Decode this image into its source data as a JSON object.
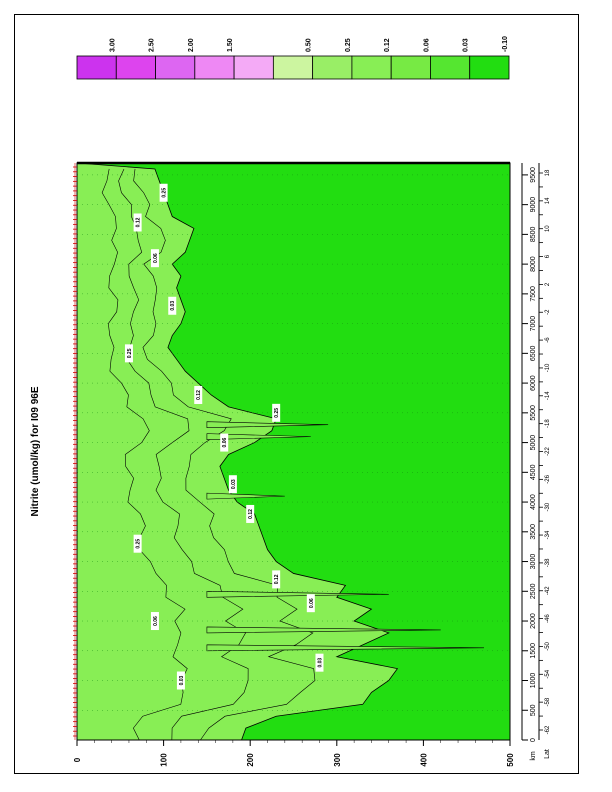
{
  "chart_data": {
    "type": "heatmap",
    "title": "Nitrite (umol/kg) for I09 96E",
    "orientation": "rotated 90 degrees clockwise",
    "x_axis": {
      "label": "km",
      "range": [
        0,
        9700
      ],
      "ticks": [
        "0",
        "500",
        "1000",
        "1500",
        "2000",
        "2500",
        "3000",
        "3500",
        "4000",
        "4500",
        "5000",
        "5500",
        "6000",
        "6500",
        "7000",
        "7500",
        "8000",
        "8500",
        "9000",
        "9500"
      ]
    },
    "lat_axis": {
      "label": "Lat",
      "ticks": [
        "-62",
        "-60",
        "-58",
        "-56",
        "-54",
        "-52",
        "-50",
        "-48",
        "-46",
        "-44",
        "-42",
        "-40",
        "-38",
        "-36",
        "-34",
        "-32",
        "-30",
        "-28",
        "-26",
        "-24",
        "-22",
        "-20",
        "-18",
        "-16",
        "-14",
        "-12",
        "-10",
        "-8",
        "-6",
        "-4",
        "-2",
        "0",
        "2",
        "4",
        "6",
        "8",
        "10",
        "12",
        "14",
        "16",
        "18"
      ]
    },
    "y_axis": {
      "label": "",
      "range": [
        0,
        500
      ],
      "ticks": [
        "0",
        "100",
        "200",
        "300",
        "400",
        "500"
      ]
    },
    "legend": {
      "placement": "top",
      "levels": [
        {
          "label": "3.00",
          "color": "#cc33ee"
        },
        {
          "label": "2.50",
          "color": "#dd44ee"
        },
        {
          "label": "2.00",
          "color": "#dd66f2"
        },
        {
          "label": "1.50",
          "color": "#ee88f4"
        },
        {
          "label": "",
          "color": "#f4aaf6"
        },
        {
          "label": "0.50",
          "color": "#ccf5a0"
        },
        {
          "label": "0.25",
          "color": "#99ee66"
        },
        {
          "label": "0.12",
          "color": "#88ee55"
        },
        {
          "label": "0.06",
          "color": "#77ea44"
        },
        {
          "label": "0.03",
          "color": "#55e630"
        },
        {
          "label": "-0.10",
          "color": "#22dd11"
        }
      ]
    },
    "colors": {
      "background_field": "#22dd11",
      "upper_layer_field": "#88ee55",
      "contour": "#000000",
      "station_marker": "#cc0000"
    },
    "contour_labels": [
      "0.03",
      "0.06",
      "0.12",
      "0.25"
    ],
    "upper_layer_depth_profile": {
      "note": "approximate lower edge (depth, umol/kg contour ~0.03) of the elevated-nitrite layer vs distance",
      "x_km": [
        0,
        200,
        400,
        600,
        800,
        1000,
        1200,
        1400,
        1600,
        1800,
        2000,
        2200,
        2400,
        2600,
        2800,
        3000,
        3200,
        3400,
        3600,
        3800,
        4000,
        4200,
        4400,
        4600,
        4800,
        5000,
        5200,
        5400,
        5600,
        5800,
        6000,
        6200,
        6400,
        6600,
        6800,
        7000,
        7200,
        7400,
        7600,
        7800,
        8000,
        8200,
        8400,
        8600,
        8800,
        9000,
        9200,
        9400,
        9600
      ],
      "depth": [
        190,
        195,
        230,
        330,
        340,
        360,
        370,
        300,
        330,
        360,
        320,
        340,
        300,
        310,
        250,
        230,
        220,
        215,
        210,
        205,
        185,
        175,
        170,
        165,
        175,
        205,
        225,
        230,
        175,
        155,
        140,
        125,
        115,
        105,
        110,
        120,
        125,
        120,
        115,
        120,
        110,
        125,
        130,
        135,
        110,
        105,
        100,
        95,
        90
      ]
    },
    "station_count": 120
  }
}
